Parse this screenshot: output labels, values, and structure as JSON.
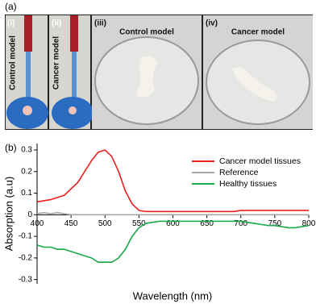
{
  "panel_a": {
    "label": "(a)",
    "photos": [
      {
        "label": "(i)",
        "caption": "Control model"
      },
      {
        "label": "(ii)",
        "caption": "Cancer model"
      },
      {
        "label": "(iii)",
        "caption": "Control model"
      },
      {
        "label": "(iv)",
        "caption": "Cancer model"
      }
    ]
  },
  "chart_data": {
    "type": "line",
    "panel_label": "(b)",
    "x_label": "Wavelength (nm)",
    "y_label": "Absorption (a.u)",
    "x": [
      400,
      410,
      420,
      430,
      440,
      450,
      460,
      470,
      480,
      490,
      500,
      510,
      520,
      530,
      540,
      550,
      560,
      570,
      580,
      590,
      600,
      610,
      620,
      630,
      640,
      650,
      660,
      670,
      680,
      690,
      700,
      710,
      720,
      730,
      740,
      750,
      760,
      770,
      780,
      790,
      800
    ],
    "series": [
      {
        "name": "Cancer model tissues",
        "color": "#e8201e",
        "values": [
          0.06,
          0.065,
          0.07,
          0.08,
          0.09,
          0.12,
          0.15,
          0.2,
          0.25,
          0.29,
          0.3,
          0.27,
          0.2,
          0.11,
          0.05,
          0.02,
          0.015,
          0.015,
          0.015,
          0.015,
          0.015,
          0.015,
          0.015,
          0.015,
          0.015,
          0.015,
          0.015,
          0.015,
          0.015,
          0.015,
          0.02,
          0.02,
          0.02,
          0.02,
          0.02,
          0.02,
          0.02,
          0.02,
          0.02,
          0.02,
          0.02
        ]
      },
      {
        "name": "Reference",
        "color": "#a6a6a6",
        "values": [
          0.005,
          0.01,
          0.005,
          0.01,
          0.005,
          0,
          0,
          0,
          0,
          0,
          0,
          0,
          0,
          0,
          0,
          0,
          0,
          0,
          0,
          0,
          0,
          0,
          0,
          0,
          0,
          0,
          0,
          0,
          0,
          0,
          0,
          0,
          0,
          0,
          0,
          0,
          0,
          0,
          0,
          0,
          0
        ]
      },
      {
        "name": "Healthy tissues",
        "color": "#1aa84a",
        "values": [
          -0.14,
          -0.15,
          -0.15,
          -0.16,
          -0.16,
          -0.17,
          -0.18,
          -0.19,
          -0.2,
          -0.22,
          -0.22,
          -0.22,
          -0.2,
          -0.16,
          -0.1,
          -0.06,
          -0.04,
          -0.035,
          -0.03,
          -0.03,
          -0.03,
          -0.03,
          -0.03,
          -0.03,
          -0.03,
          -0.03,
          -0.03,
          -0.03,
          -0.03,
          -0.03,
          -0.03,
          -0.035,
          -0.04,
          -0.045,
          -0.05,
          -0.05,
          -0.055,
          -0.06,
          -0.06,
          -0.055,
          -0.05
        ]
      }
    ],
    "xlim": [
      400,
      800
    ],
    "ylim": [
      -0.32,
      0.33
    ],
    "xticks": [
      400,
      450,
      500,
      550,
      600,
      650,
      700,
      750,
      800
    ],
    "yticks": [
      -0.3,
      -0.2,
      -0.1,
      0,
      0.1,
      0.2,
      0.3
    ],
    "legend": "upper right",
    "grid": false
  }
}
